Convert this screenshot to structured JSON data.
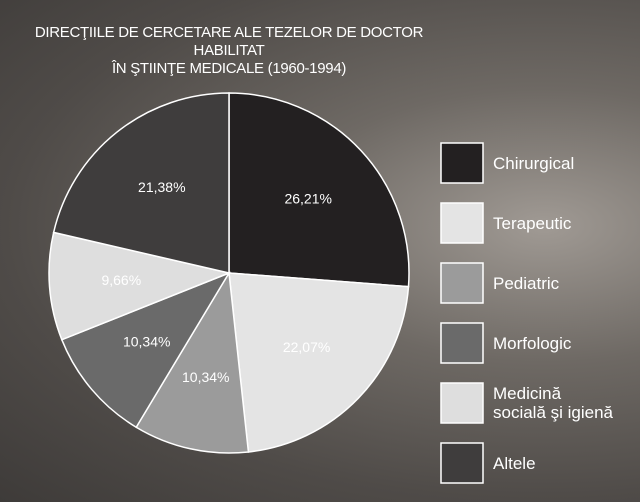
{
  "chart_data": {
    "type": "pie",
    "title": "DIRECŢIILE DE CERCETARE ALE TEZELOR DE DOCTOR HABILITAT\nÎN ŞTIINŢE MEDICALE (1960-1994)",
    "categories": [
      "Chirurgical",
      "Terapeutic",
      "Pediatric",
      "Morfologic",
      "Medicină\nsocială şi igienă",
      "Altele"
    ],
    "values": [
      26.21,
      22.07,
      10.34,
      10.34,
      9.66,
      21.38
    ],
    "value_labels": [
      "26,21%",
      "22,07%",
      "10,34%",
      "10,34%",
      "9,66%",
      "21,38%"
    ],
    "colors": [
      "#232021",
      "#e4e4e4",
      "#9b9b9b",
      "#6a6a6a",
      "#dedede",
      "#3f3d3d"
    ],
    "legend": "right"
  }
}
